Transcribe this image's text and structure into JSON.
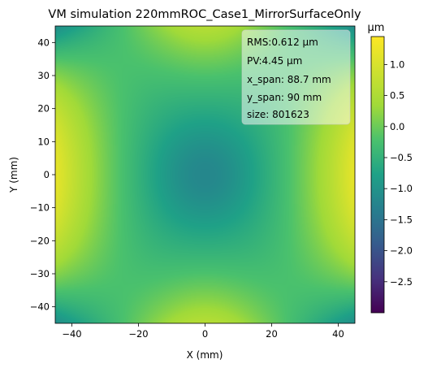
{
  "chart_data": {
    "type": "heatmap",
    "title": "VM simulation 220mmROC_Case1_MirrorSurfaceOnly",
    "xlabel": "X (mm)",
    "ylabel": "Y (mm)",
    "xlim": [
      -45,
      45
    ],
    "ylim": [
      -45,
      45
    ],
    "x_ticks": [
      -40,
      -20,
      0,
      20,
      40
    ],
    "x_tick_labels": [
      "−40",
      "−20",
      "0",
      "20",
      "40"
    ],
    "y_ticks": [
      -40,
      -30,
      -20,
      -10,
      0,
      10,
      20,
      30,
      40
    ],
    "y_tick_labels": [
      "−40",
      "−30",
      "−20",
      "−10",
      "0",
      "10",
      "20",
      "30",
      "40"
    ],
    "colorbar": {
      "label": "μm",
      "colormap": "viridis",
      "range": [
        -3.0,
        1.45
      ],
      "ticks": [
        -2.5,
        -2.0,
        -1.5,
        -1.0,
        -0.5,
        0.0,
        0.5,
        1.0
      ],
      "tick_labels": [
        "−2.5",
        "−2.0",
        "−1.5",
        "−1.0",
        "−0.5",
        "0.0",
        "0.5",
        "1.0"
      ]
    },
    "stats": [
      "RMS:0.612 μm",
      "PV:4.45 μm",
      "x_span: 88.7 mm",
      "y_span: 90 mm",
      "size: 801623"
    ],
    "grid": false,
    "legend": "none"
  }
}
